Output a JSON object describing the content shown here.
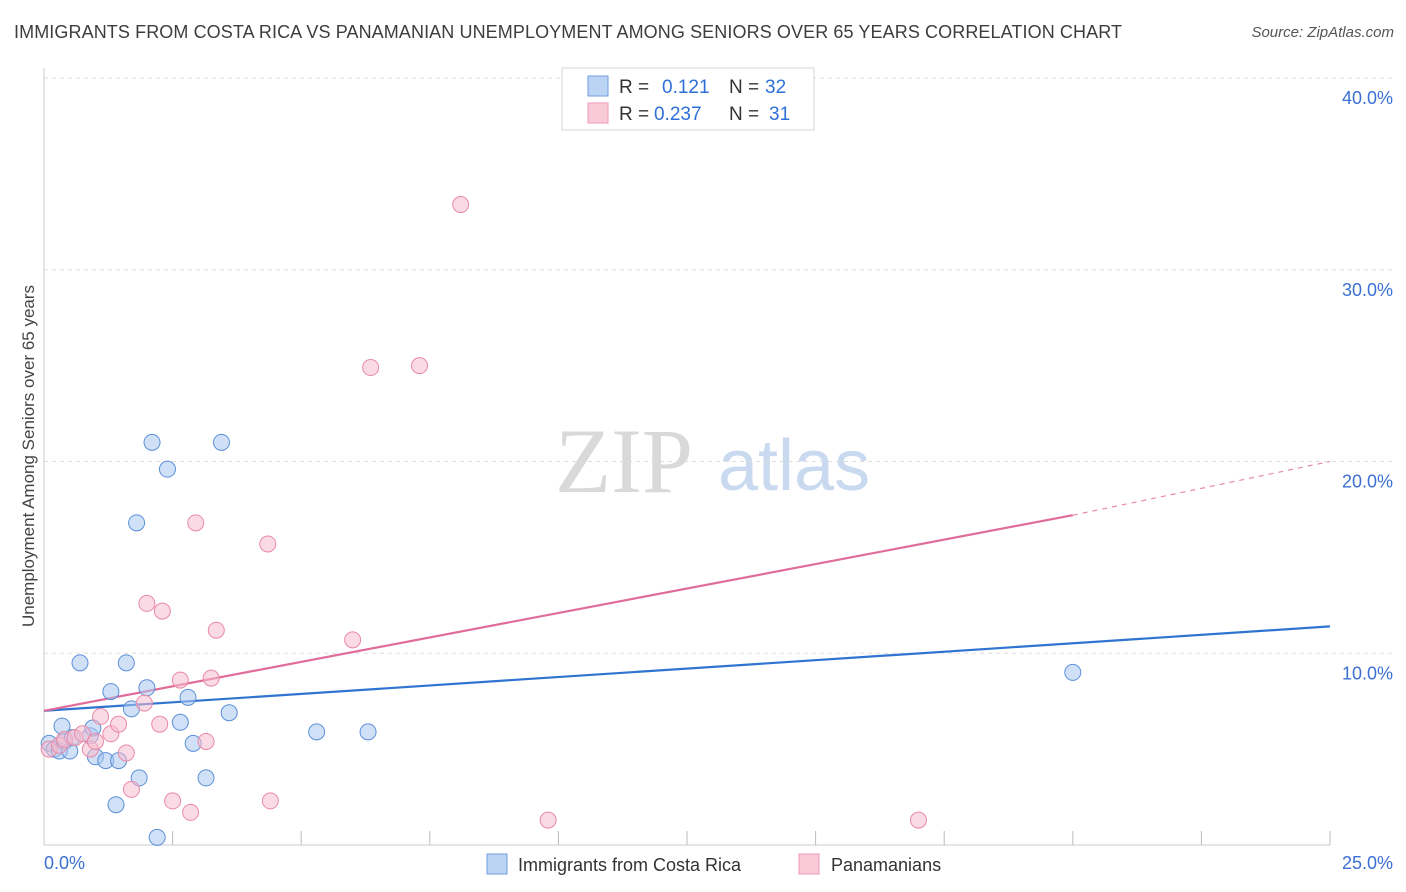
{
  "title": "IMMIGRANTS FROM COSTA RICA VS PANAMANIAN UNEMPLOYMENT AMONG SENIORS OVER 65 YEARS CORRELATION CHART",
  "source": "Source: ZipAtlas.com",
  "watermark": {
    "zip": "ZIP",
    "atlas": "atlas"
  },
  "legend": {
    "series1": {
      "r_label": "R =",
      "r_value": "0.121",
      "n_label": "N =",
      "n_value": "32"
    },
    "series2": {
      "r_label": "R =",
      "r_value": "0.237",
      "n_label": "N =",
      "n_value": "31"
    }
  },
  "colors": {
    "blue_fill": "#a9c8f0",
    "blue_stroke": "#5a8fd8",
    "blue_line": "#2f74d0",
    "pink_fill": "#f6bccd",
    "pink_stroke": "#e98aa8",
    "pink_line": "#e06c9a",
    "tick_text": "#3b6fd1",
    "grid": "#dddddd"
  },
  "chart_data": {
    "type": "scatter",
    "title": "IMMIGRANTS FROM COSTA RICA VS PANAMANIAN UNEMPLOYMENT AMONG SENIORS OVER 65 YEARS CORRELATION CHART",
    "xlabel": "",
    "ylabel": "Unemployment Among Seniors over 65 years",
    "xlim": [
      0,
      25
    ],
    "ylim": [
      0,
      40
    ],
    "x_tick_labels": [
      "0.0%",
      "25.0%"
    ],
    "y_ticks": [
      10,
      20,
      30,
      40
    ],
    "y_tick_labels": [
      "10.0%",
      "20.0%",
      "30.0%",
      "40.0%"
    ],
    "grid": true,
    "legend_position": "top-center",
    "series": [
      {
        "name": "Immigrants from Costa Rica",
        "color": "blue",
        "r": 0.121,
        "n": 32,
        "trend": {
          "x": [
            0,
            25
          ],
          "y": [
            7.0,
            11.4
          ]
        },
        "points": [
          [
            0.1,
            5.3
          ],
          [
            0.2,
            5.0
          ],
          [
            0.3,
            4.9
          ],
          [
            0.35,
            6.2
          ],
          [
            0.4,
            5.4
          ],
          [
            0.5,
            4.9
          ],
          [
            0.55,
            5.6
          ],
          [
            0.7,
            9.5
          ],
          [
            0.9,
            5.7
          ],
          [
            0.95,
            6.1
          ],
          [
            1.0,
            4.6
          ],
          [
            1.2,
            4.4
          ],
          [
            1.3,
            8.0
          ],
          [
            1.4,
            2.1
          ],
          [
            1.45,
            4.4
          ],
          [
            1.6,
            9.5
          ],
          [
            1.7,
            7.1
          ],
          [
            1.8,
            16.8
          ],
          [
            1.85,
            3.5
          ],
          [
            2.0,
            8.2
          ],
          [
            2.1,
            21.0
          ],
          [
            2.2,
            0.4
          ],
          [
            2.4,
            19.6
          ],
          [
            2.65,
            6.4
          ],
          [
            2.8,
            7.7
          ],
          [
            2.9,
            5.3
          ],
          [
            3.15,
            3.5
          ],
          [
            3.45,
            21.0
          ],
          [
            3.6,
            6.9
          ],
          [
            5.3,
            5.9
          ],
          [
            6.3,
            5.9
          ],
          [
            20.0,
            9.0
          ]
        ]
      },
      {
        "name": "Panamanians",
        "color": "pink",
        "r": 0.237,
        "n": 31,
        "trend": {
          "x": [
            0,
            20
          ],
          "y": [
            7.0,
            17.2
          ]
        },
        "trend_dashed": {
          "x": [
            20,
            25
          ],
          "y": [
            17.2,
            20.0
          ]
        },
        "points": [
          [
            0.1,
            5.0
          ],
          [
            0.3,
            5.2
          ],
          [
            0.4,
            5.5
          ],
          [
            0.6,
            5.6
          ],
          [
            0.75,
            5.8
          ],
          [
            0.9,
            5.0
          ],
          [
            1.0,
            5.4
          ],
          [
            1.1,
            6.7
          ],
          [
            1.3,
            5.8
          ],
          [
            1.45,
            6.3
          ],
          [
            1.6,
            4.8
          ],
          [
            1.7,
            2.9
          ],
          [
            1.95,
            7.4
          ],
          [
            2.0,
            12.6
          ],
          [
            2.25,
            6.3
          ],
          [
            2.3,
            12.2
          ],
          [
            2.5,
            2.3
          ],
          [
            2.65,
            8.6
          ],
          [
            2.85,
            1.7
          ],
          [
            2.95,
            16.8
          ],
          [
            3.15,
            5.4
          ],
          [
            3.25,
            8.7
          ],
          [
            3.35,
            11.2
          ],
          [
            4.35,
            15.7
          ],
          [
            4.4,
            2.3
          ],
          [
            6.0,
            10.7
          ],
          [
            6.35,
            24.9
          ],
          [
            7.3,
            25.0
          ],
          [
            8.1,
            33.4
          ],
          [
            9.8,
            1.3
          ],
          [
            17.0,
            1.3
          ]
        ]
      }
    ]
  },
  "bottom_legend": {
    "series1_label": "Immigrants from Costa Rica",
    "series2_label": "Panamanians"
  }
}
